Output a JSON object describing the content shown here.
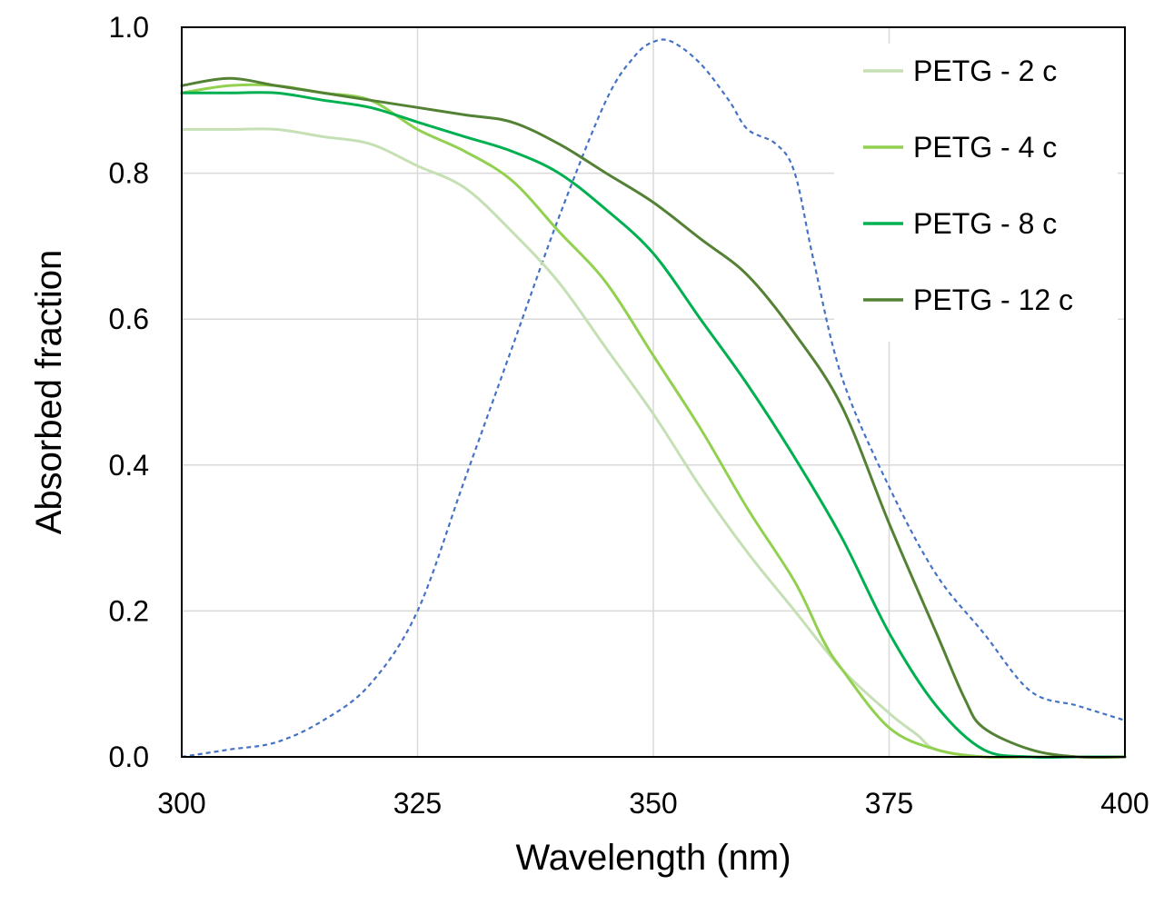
{
  "chart_data": {
    "type": "line",
    "title": "",
    "xlabel": "Wavelength (nm)",
    "ylabel": "Absorbed fraction",
    "xlim": [
      300,
      400
    ],
    "ylim": [
      0,
      1.0
    ],
    "x_ticks": [
      300,
      325,
      350,
      375,
      400
    ],
    "y_ticks": [
      "0.0",
      "0.2",
      "0.4",
      "0.6",
      "0.8",
      "1.0"
    ],
    "grid": true,
    "legend_placement": "top-right",
    "series": [
      {
        "name": "PETG - 2 c",
        "color": "#c5e0b4",
        "style": "solid",
        "points": [
          [
            300,
            0.86
          ],
          [
            305,
            0.86
          ],
          [
            310,
            0.86
          ],
          [
            315,
            0.85
          ],
          [
            320,
            0.84
          ],
          [
            325,
            0.81
          ],
          [
            330,
            0.78
          ],
          [
            335,
            0.72
          ],
          [
            340,
            0.65
          ],
          [
            345,
            0.56
          ],
          [
            350,
            0.47
          ],
          [
            355,
            0.37
          ],
          [
            360,
            0.28
          ],
          [
            365,
            0.2
          ],
          [
            370,
            0.12
          ],
          [
            375,
            0.06
          ],
          [
            378,
            0.03
          ],
          [
            380,
            0.01
          ],
          [
            385,
            0.0
          ],
          [
            390,
            0.0
          ],
          [
            400,
            0.0
          ]
        ]
      },
      {
        "name": "PETG - 4 c",
        "color": "#92d050",
        "style": "solid",
        "points": [
          [
            300,
            0.91
          ],
          [
            305,
            0.92
          ],
          [
            310,
            0.92
          ],
          [
            315,
            0.91
          ],
          [
            320,
            0.9
          ],
          [
            325,
            0.86
          ],
          [
            330,
            0.83
          ],
          [
            335,
            0.79
          ],
          [
            340,
            0.72
          ],
          [
            345,
            0.65
          ],
          [
            350,
            0.55
          ],
          [
            355,
            0.45
          ],
          [
            360,
            0.34
          ],
          [
            365,
            0.24
          ],
          [
            368,
            0.16
          ],
          [
            370,
            0.12
          ],
          [
            375,
            0.04
          ],
          [
            380,
            0.01
          ],
          [
            385,
            0.0
          ],
          [
            390,
            0.0
          ],
          [
            400,
            0.0
          ]
        ]
      },
      {
        "name": "PETG - 8 c",
        "color": "#00b050",
        "style": "solid",
        "points": [
          [
            300,
            0.91
          ],
          [
            305,
            0.91
          ],
          [
            310,
            0.91
          ],
          [
            315,
            0.9
          ],
          [
            320,
            0.89
          ],
          [
            325,
            0.87
          ],
          [
            330,
            0.85
          ],
          [
            335,
            0.83
          ],
          [
            340,
            0.8
          ],
          [
            345,
            0.75
          ],
          [
            350,
            0.69
          ],
          [
            355,
            0.6
          ],
          [
            360,
            0.51
          ],
          [
            365,
            0.41
          ],
          [
            370,
            0.3
          ],
          [
            375,
            0.17
          ],
          [
            380,
            0.07
          ],
          [
            385,
            0.01
          ],
          [
            390,
            0.0
          ],
          [
            395,
            0.0
          ],
          [
            400,
            0.0
          ]
        ]
      },
      {
        "name": "PETG - 12 c",
        "color": "#548235",
        "style": "solid",
        "points": [
          [
            300,
            0.92
          ],
          [
            305,
            0.93
          ],
          [
            310,
            0.92
          ],
          [
            315,
            0.91
          ],
          [
            320,
            0.9
          ],
          [
            325,
            0.89
          ],
          [
            330,
            0.88
          ],
          [
            335,
            0.87
          ],
          [
            340,
            0.84
          ],
          [
            345,
            0.8
          ],
          [
            350,
            0.76
          ],
          [
            355,
            0.71
          ],
          [
            360,
            0.66
          ],
          [
            365,
            0.58
          ],
          [
            370,
            0.48
          ],
          [
            375,
            0.32
          ],
          [
            380,
            0.17
          ],
          [
            383,
            0.08
          ],
          [
            385,
            0.04
          ],
          [
            390,
            0.01
          ],
          [
            395,
            0.0
          ],
          [
            400,
            0.0
          ]
        ]
      },
      {
        "name": "",
        "color": "#4472c4",
        "style": "dashed",
        "points": [
          [
            300,
            0.0
          ],
          [
            305,
            0.01
          ],
          [
            310,
            0.02
          ],
          [
            315,
            0.05
          ],
          [
            320,
            0.1
          ],
          [
            325,
            0.2
          ],
          [
            330,
            0.38
          ],
          [
            335,
            0.56
          ],
          [
            340,
            0.74
          ],
          [
            345,
            0.9
          ],
          [
            348,
            0.96
          ],
          [
            350,
            0.98
          ],
          [
            352,
            0.98
          ],
          [
            355,
            0.95
          ],
          [
            358,
            0.9
          ],
          [
            360,
            0.86
          ],
          [
            363,
            0.84
          ],
          [
            365,
            0.8
          ],
          [
            367,
            0.68
          ],
          [
            370,
            0.52
          ],
          [
            375,
            0.37
          ],
          [
            380,
            0.25
          ],
          [
            385,
            0.17
          ],
          [
            390,
            0.09
          ],
          [
            395,
            0.07
          ],
          [
            400,
            0.05
          ]
        ]
      }
    ]
  }
}
